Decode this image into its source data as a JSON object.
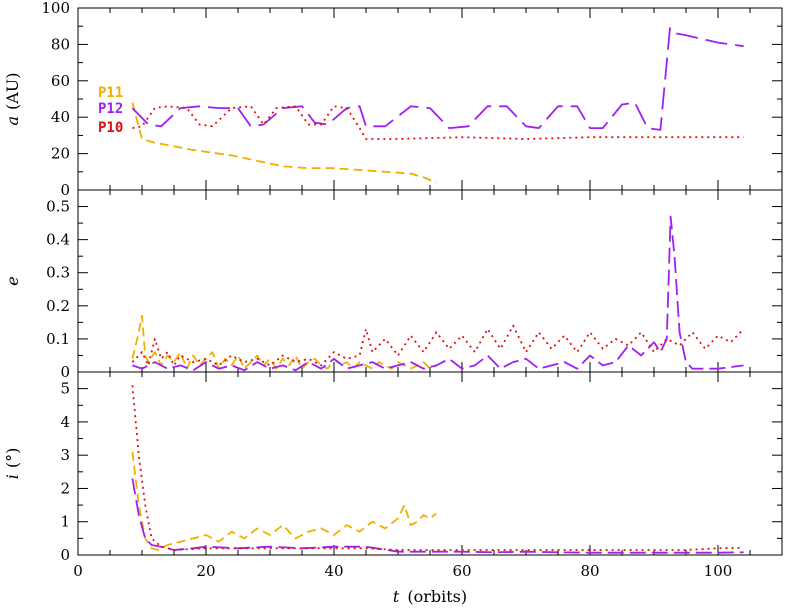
{
  "chart_data": {
    "type": "line",
    "shared_x": {
      "label_var": "t",
      "label_unit": "(orbits)",
      "range": [
        0,
        110
      ],
      "ticks": [
        0,
        20,
        40,
        60,
        80,
        100
      ]
    },
    "legend": {
      "placement": "top-left of top panel",
      "entries": [
        {
          "name": "P11",
          "color": "#f0b000"
        },
        {
          "name": "P12",
          "color": "#a020f0"
        },
        {
          "name": "P10",
          "color": "#e01010"
        }
      ]
    },
    "panels": [
      {
        "id": "a",
        "ylabel_var": "a",
        "ylabel_unit": "(AU)",
        "ylim": [
          0,
          100
        ],
        "yticks": [
          0,
          20,
          40,
          60,
          80,
          100
        ],
        "series": [
          {
            "name": "P11",
            "color": "#f0b000",
            "dash": "9,5",
            "x": [
              8.5,
              10,
              12,
              15,
              18,
              20,
              24,
              28,
              32,
              36,
              40,
              44,
              48,
              52,
              54,
              56
            ],
            "y": [
              48,
              28,
              26,
              24,
              22,
              21,
              19,
              16,
              13,
              12,
              12,
              11,
              10,
              9,
              7,
              4
            ]
          },
          {
            "name": "P12",
            "color": "#a020f0",
            "dash": "22,8",
            "x": [
              8.5,
              11,
              13,
              16,
              19,
              22,
              25,
              27,
              29,
              32,
              35,
              37,
              39,
              42,
              44,
              45,
              48,
              52,
              55,
              58,
              61,
              64,
              67,
              70,
              72,
              75,
              78,
              80,
              82,
              85,
              87,
              89,
              91,
              92.5,
              93.5,
              95,
              100,
              104
            ],
            "y": [
              45,
              36,
              35,
              45,
              46,
              45,
              45,
              35,
              36,
              45,
              46,
              37,
              36,
              45,
              46,
              35,
              35,
              46,
              45,
              34,
              35,
              46,
              46,
              35,
              34,
              46,
              46,
              34,
              34,
              47,
              48,
              34,
              33,
              89,
              86,
              85,
              81,
              79
            ]
          },
          {
            "name": "P10",
            "color": "#e01010",
            "dash": "2,4",
            "x": [
              8.5,
              10,
              12,
              14,
              17,
              19,
              21,
              24,
              27,
              29,
              31,
              34,
              36,
              38,
              40,
              42,
              44,
              45,
              50,
              60,
              70,
              80,
              90,
              100,
              104
            ],
            "y": [
              34,
              35,
              45,
              46,
              45,
              36,
              35,
              45,
              46,
              36,
              45,
              46,
              36,
              36,
              46,
              45,
              34,
              28,
              28,
              29,
              28,
              29,
              29,
              29,
              29
            ]
          }
        ]
      },
      {
        "id": "e",
        "ylabel_var": "e",
        "ylabel_unit": "",
        "ylim": [
          0,
          0.55
        ],
        "yticks": [
          0,
          0.1,
          0.2,
          0.3,
          0.4,
          0.5
        ],
        "series": [
          {
            "name": "P11",
            "color": "#f0b000",
            "dash": "9,5",
            "x": [
              8.5,
              9.5,
              10,
              10.5,
              11,
              12,
              13,
              14,
              15,
              16,
              17,
              18,
              19,
              20,
              21,
              22,
              23,
              24,
              25,
              26,
              27,
              28,
              29,
              30,
              31,
              32,
              33,
              34,
              35,
              36,
              37,
              38,
              39,
              40,
              41,
              42,
              43,
              44,
              45,
              46,
              47,
              48,
              49,
              50,
              51,
              52,
              53,
              54,
              55,
              56
            ],
            "y": [
              0.04,
              0.12,
              0.17,
              0.05,
              0.03,
              0.06,
              0.02,
              0.05,
              0.03,
              0.06,
              0.01,
              0.05,
              0.02,
              0.04,
              0.06,
              0.01,
              0.04,
              0.02,
              0.05,
              0.01,
              0.03,
              0.05,
              0.02,
              0.04,
              0.01,
              0.04,
              0.02,
              0.05,
              0.01,
              0.03,
              0.04,
              0.02,
              0.01,
              0.04,
              0.02,
              0.03,
              0.01,
              0.03,
              0.02,
              0.01,
              0.03,
              0.02,
              0.01,
              0.03,
              0.02,
              0.01,
              0.02,
              0.03,
              0.01,
              0.02
            ]
          },
          {
            "name": "P12",
            "color": "#a020f0",
            "dash": "16,6",
            "x": [
              8.5,
              10,
              12,
              14,
              16,
              18,
              20,
              22,
              24,
              26,
              28,
              30,
              32,
              34,
              36,
              38,
              40,
              42,
              44,
              46,
              48,
              50,
              52,
              54,
              56,
              58,
              60,
              62,
              64,
              66,
              68,
              70,
              72,
              74,
              76,
              78,
              80,
              82,
              84,
              86,
              88,
              90,
              91,
              92,
              92.6,
              93.2,
              94,
              95,
              96,
              100,
              104
            ],
            "y": [
              0.02,
              0.01,
              0.03,
              0.01,
              0.02,
              0.005,
              0.03,
              0.01,
              0.02,
              0.005,
              0.03,
              0.01,
              0.02,
              0.005,
              0.03,
              0.01,
              0.04,
              0.01,
              0.02,
              0.03,
              0.01,
              0.02,
              0.03,
              0.01,
              0.02,
              0.04,
              0.01,
              0.02,
              0.05,
              0.01,
              0.03,
              0.04,
              0.01,
              0.02,
              0.03,
              0.01,
              0.05,
              0.02,
              0.03,
              0.08,
              0.05,
              0.09,
              0.06,
              0.1,
              0.47,
              0.35,
              0.12,
              0.03,
              0.01,
              0.01,
              0.02
            ]
          },
          {
            "name": "P10",
            "color": "#e01010",
            "dash": "2,4",
            "x": [
              8.5,
              10,
              11,
              12,
              13,
              14,
              15,
              16,
              18,
              20,
              22,
              24,
              26,
              28,
              30,
              32,
              34,
              36,
              38,
              40,
              42,
              44,
              45,
              46,
              48,
              50,
              52,
              54,
              56,
              58,
              60,
              62,
              64,
              66,
              68,
              70,
              72,
              74,
              76,
              78,
              80,
              82,
              84,
              86,
              88,
              90,
              92,
              94,
              96,
              98,
              100,
              102,
              104
            ],
            "y": [
              0.03,
              0.06,
              0.02,
              0.1,
              0.04,
              0.06,
              0.02,
              0.05,
              0.03,
              0.04,
              0.02,
              0.05,
              0.03,
              0.04,
              0.02,
              0.05,
              0.03,
              0.04,
              0.02,
              0.06,
              0.04,
              0.05,
              0.13,
              0.06,
              0.1,
              0.05,
              0.11,
              0.06,
              0.12,
              0.07,
              0.11,
              0.06,
              0.13,
              0.07,
              0.14,
              0.06,
              0.12,
              0.07,
              0.11,
              0.06,
              0.12,
              0.07,
              0.1,
              0.08,
              0.12,
              0.06,
              0.1,
              0.08,
              0.12,
              0.07,
              0.11,
              0.09,
              0.13
            ]
          }
        ]
      },
      {
        "id": "i",
        "ylabel_var": "i",
        "ylabel_unit": "(°)",
        "ylim": [
          0,
          5.5
        ],
        "yticks": [
          0,
          1,
          2,
          3,
          4,
          5
        ],
        "series": [
          {
            "name": "P11",
            "color": "#f0b000",
            "dash": "9,5",
            "x": [
              8.5,
              9.5,
              10.5,
              11.5,
              12.5,
              14,
              16,
              18,
              20,
              22,
              24,
              26,
              28,
              30,
              32,
              34,
              36,
              38,
              40,
              42,
              44,
              46,
              48,
              50,
              51,
              52,
              53,
              54,
              55,
              56
            ],
            "y": [
              3.1,
              1.5,
              0.5,
              0.2,
              0.15,
              0.3,
              0.4,
              0.5,
              0.6,
              0.4,
              0.7,
              0.5,
              0.8,
              0.6,
              0.9,
              0.5,
              0.7,
              0.8,
              0.6,
              0.9,
              0.7,
              1.0,
              0.8,
              1.1,
              1.5,
              0.9,
              1.0,
              1.2,
              1.1,
              1.25
            ]
          },
          {
            "name": "P12",
            "color": "#a020f0",
            "dash": "16,6",
            "x": [
              8.5,
              9.5,
              10.5,
              11.5,
              13,
              15,
              18,
              20,
              25,
              30,
              35,
              40,
              45,
              50,
              55,
              60,
              65,
              70,
              75,
              80,
              85,
              90,
              95,
              100,
              104
            ],
            "y": [
              2.3,
              1.2,
              0.5,
              0.3,
              0.25,
              0.15,
              0.2,
              0.25,
              0.2,
              0.25,
              0.2,
              0.25,
              0.25,
              0.1,
              0.1,
              0.1,
              0.08,
              0.1,
              0.08,
              0.07,
              0.07,
              0.07,
              0.07,
              0.07,
              0.08
            ]
          },
          {
            "name": "P10",
            "color": "#e01010",
            "dash": "2,4",
            "x": [
              8.5,
              9.5,
              10.5,
              11.5,
              13,
              15,
              20,
              25,
              30,
              35,
              40,
              45,
              50,
              55,
              60,
              65,
              70,
              75,
              80,
              85,
              90,
              95,
              100,
              104
            ],
            "y": [
              5.1,
              3.0,
              1.5,
              0.5,
              0.25,
              0.15,
              0.2,
              0.2,
              0.2,
              0.2,
              0.2,
              0.2,
              0.15,
              0.15,
              0.15,
              0.15,
              0.15,
              0.15,
              0.15,
              0.15,
              0.15,
              0.15,
              0.2,
              0.22
            ]
          }
        ]
      }
    ]
  }
}
